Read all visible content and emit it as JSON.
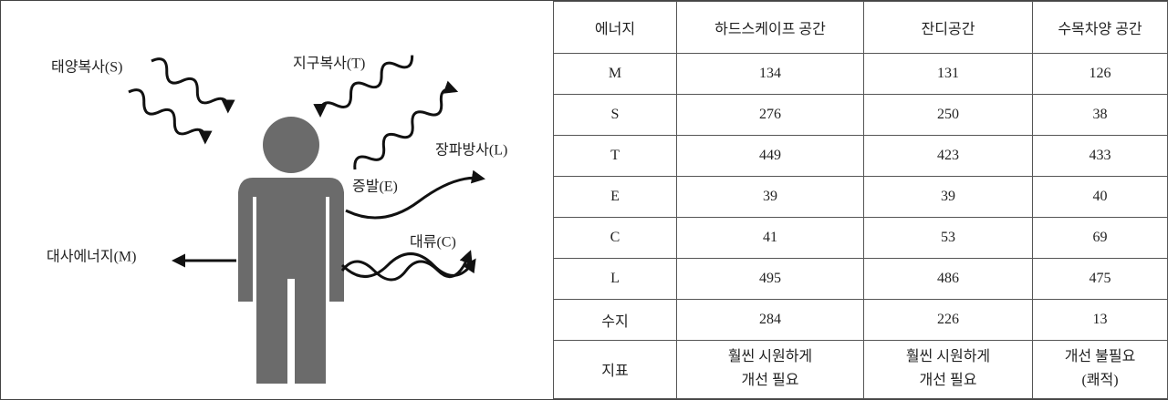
{
  "diagram": {
    "labels": {
      "solar": "태양복사(S)",
      "terrestrial": "지구복사(T)",
      "longwave": "장파방사(L)",
      "evaporation": "증발(E)",
      "convection": "대류(C)",
      "metabolic": "대사에너지(M)"
    }
  },
  "table": {
    "header": [
      "에너지",
      "하드스케이프 공간",
      "잔디공간",
      "수목차양 공간"
    ],
    "rows": [
      [
        "M",
        134,
        131,
        126
      ],
      [
        "S",
        276,
        250,
        38
      ],
      [
        "T",
        449,
        423,
        433
      ],
      [
        "E",
        39,
        39,
        40
      ],
      [
        "C",
        41,
        53,
        69
      ],
      [
        "L",
        495,
        486,
        475
      ],
      [
        "수지",
        284,
        226,
        13
      ],
      [
        "지표",
        [
          "훨씬 시원하게",
          "개선 필요"
        ],
        [
          "훨씬 시원하게",
          "개선 필요"
        ],
        [
          "개선 불필요",
          "(쾌적)"
        ]
      ]
    ]
  }
}
